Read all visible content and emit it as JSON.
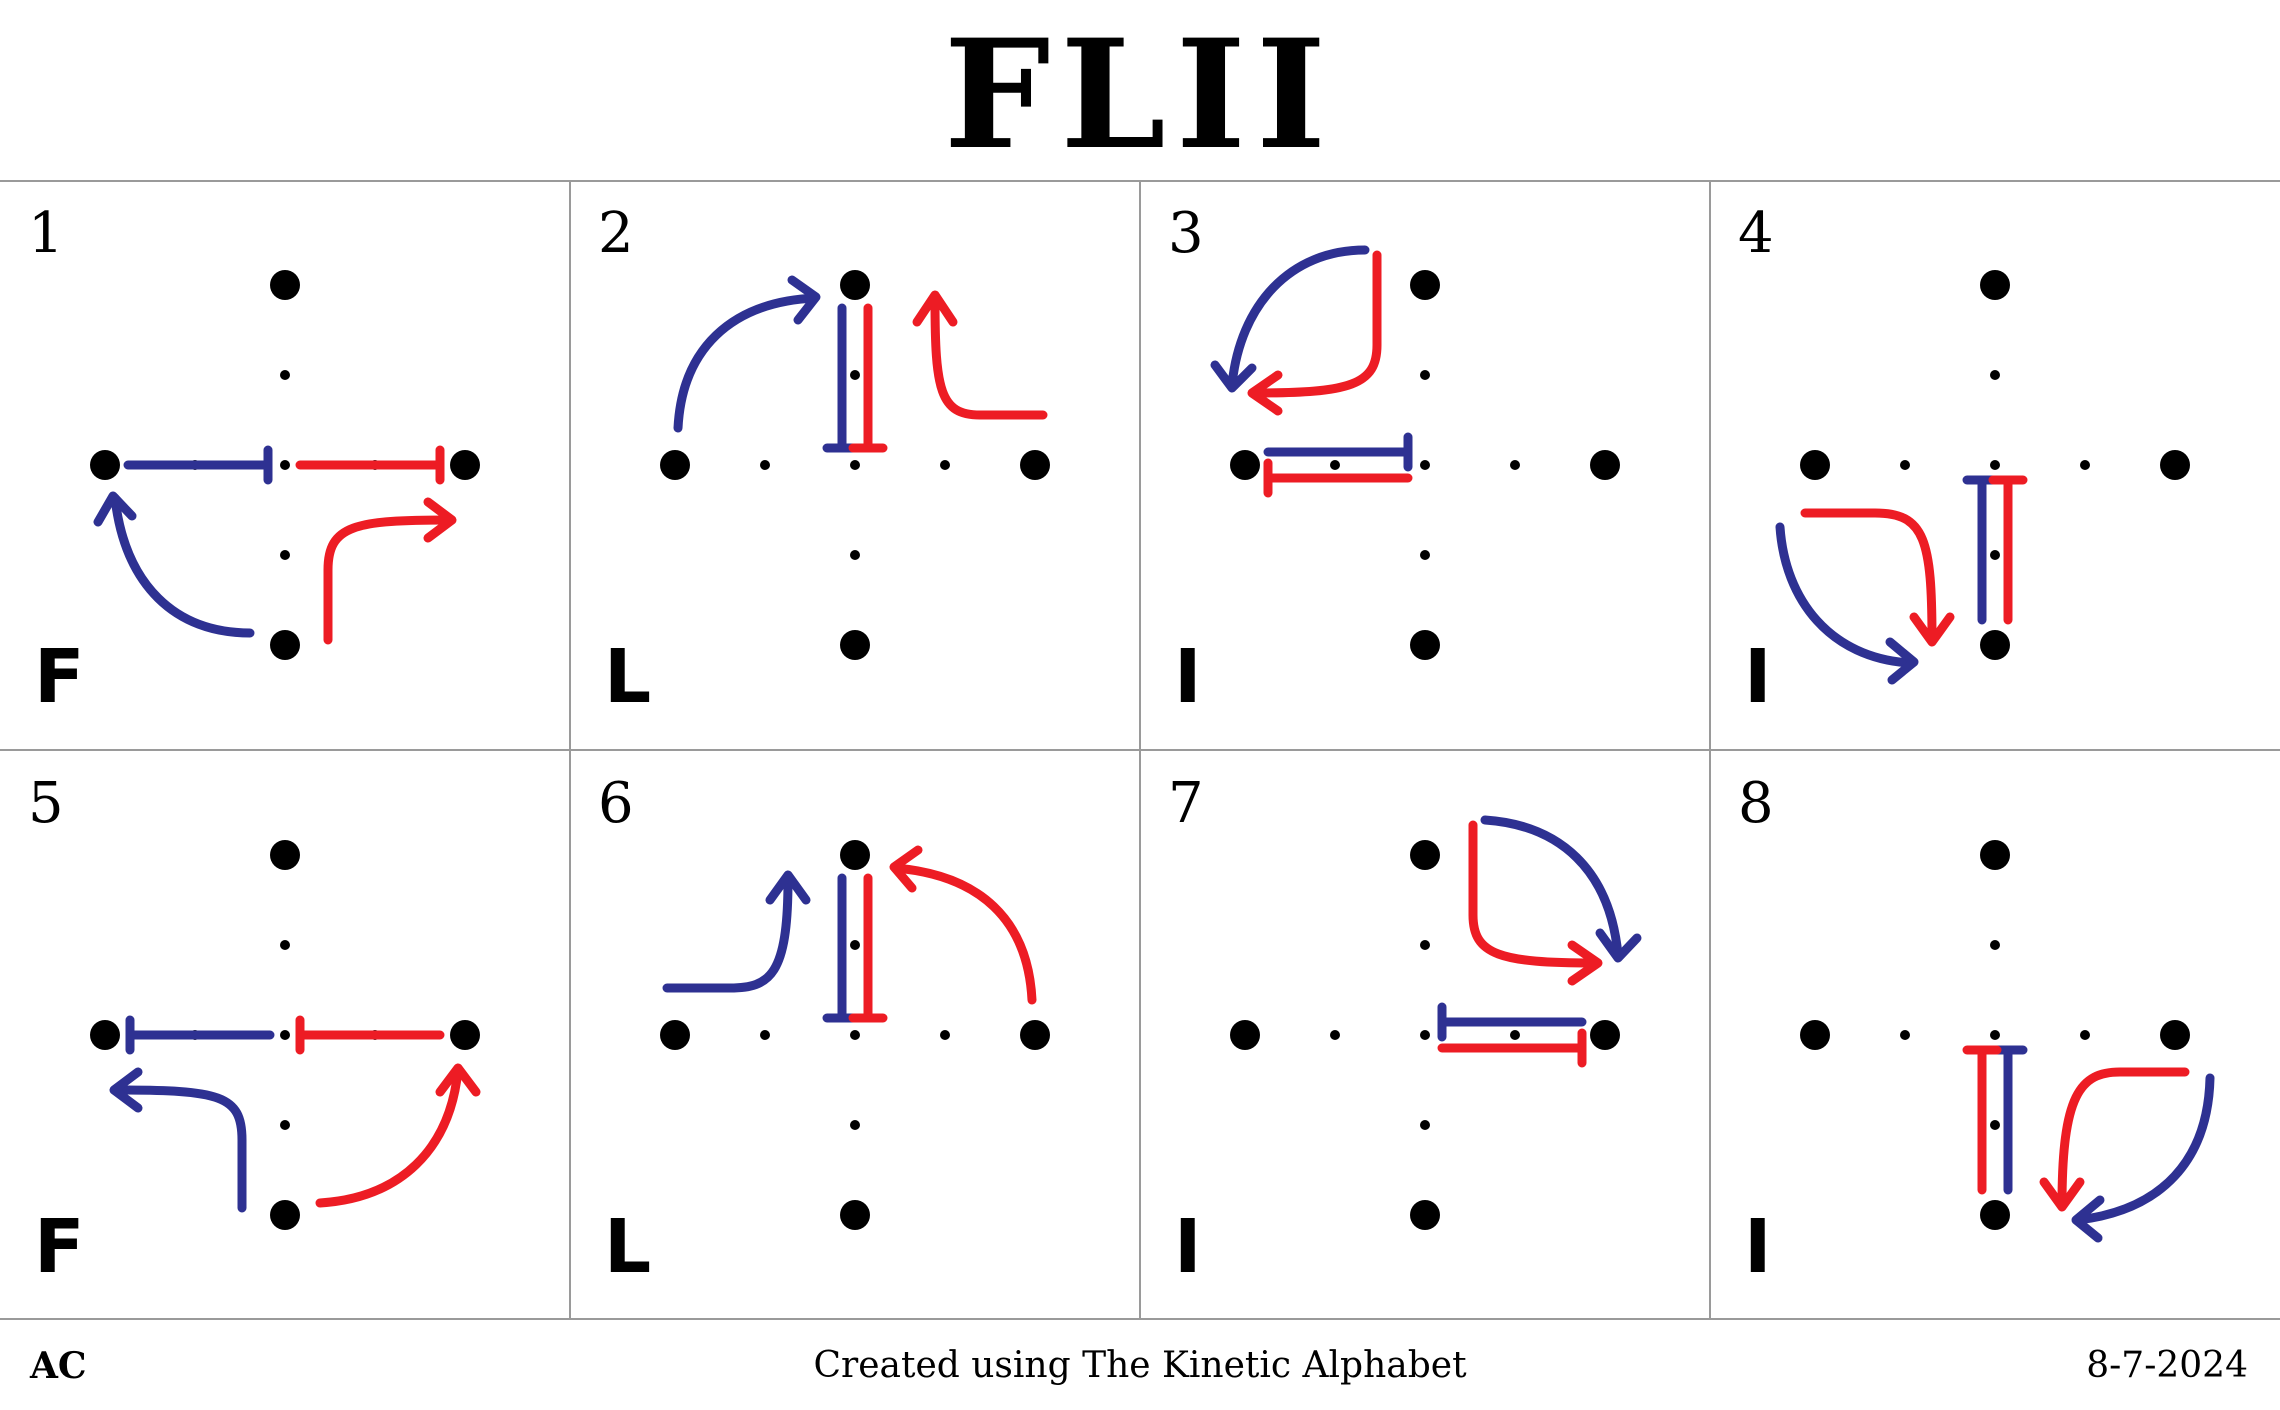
{
  "title": "FLII",
  "colors": {
    "blue": "#2e3192",
    "red": "#ed1c24",
    "grid": "#9a9a9a",
    "dot": "#000000"
  },
  "cells": [
    {
      "number": "1",
      "letter": "F"
    },
    {
      "number": "2",
      "letter": "L"
    },
    {
      "number": "3",
      "letter": "I"
    },
    {
      "number": "4",
      "letter": "I"
    },
    {
      "number": "5",
      "letter": "F"
    },
    {
      "number": "6",
      "letter": "L"
    },
    {
      "number": "7",
      "letter": "I"
    },
    {
      "number": "8",
      "letter": "I"
    }
  ],
  "footer": {
    "left": "AC",
    "center": "Created using The Kinetic Alphabet",
    "right": "8-7-2024"
  }
}
